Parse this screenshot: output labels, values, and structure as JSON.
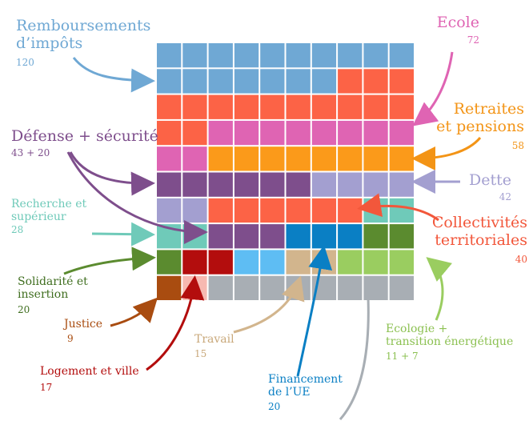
{
  "chart_data": {
    "type": "waffle",
    "grid": {
      "rows": 10,
      "cols": 10
    },
    "categories": [
      {
        "key": "remb",
        "name": "Remboursements d’impôts",
        "value": "120",
        "color": "#6fa8d4"
      },
      {
        "key": "ecole",
        "name": "Ecole",
        "value": "72",
        "color": "#df64b3"
      },
      {
        "key": "retr",
        "name": "Retraites et pensions",
        "value": "58",
        "color": "#fb9a1a"
      },
      {
        "key": "def",
        "name": "Défense + sécurité",
        "value": "43 + 20",
        "color": "#7e4e8c"
      },
      {
        "key": "dette",
        "name": "Dette",
        "value": "42",
        "color": "#a39fd0"
      },
      {
        "key": "rech",
        "name": "Recherche et supérieur",
        "value": "28",
        "color": "#6fcab9"
      },
      {
        "key": "coll",
        "name": "Collectivités territoriales",
        "value": "40",
        "color": "#fc6346"
      },
      {
        "key": "solid",
        "name": "Solidarité et insertion",
        "value": "20",
        "color": "#5b8b2f"
      },
      {
        "key": "justice",
        "name": "Justice",
        "value": "9",
        "color": "#a94c10"
      },
      {
        "key": "travail",
        "name": "Travail",
        "value": "15",
        "color": "#d2b58d"
      },
      {
        "key": "logt",
        "name": "Logement et ville",
        "value": "17",
        "color": "#b30d0d"
      },
      {
        "key": "ue",
        "name": "Financement de l’UE",
        "value": "20",
        "color": "#0a7fc4"
      },
      {
        "key": "eco",
        "name": "Ecologie + transition énergétique",
        "value": "11 + 7",
        "color": "#9acd60"
      }
    ],
    "cells": [
      "remb",
      "remb",
      "remb",
      "remb",
      "remb",
      "remb",
      "remb",
      "remb",
      "remb",
      "remb",
      "remb",
      "remb",
      "remb",
      "remb",
      "remb",
      "remb",
      "remb",
      "coll",
      "coll",
      "coll",
      "coll",
      "coll",
      "coll",
      "coll",
      "coll",
      "coll",
      "coll",
      "coll",
      "coll",
      "coll",
      "coll",
      "coll",
      "ecole",
      "ecole",
      "ecole",
      "ecole",
      "ecole",
      "ecole",
      "ecole",
      "ecole",
      "ecole",
      "ecole",
      "retr",
      "retr",
      "retr",
      "retr",
      "retr",
      "retr",
      "retr",
      "retr",
      "def",
      "def",
      "def",
      "def",
      "def",
      "def",
      "dette",
      "dette",
      "dette",
      "dette",
      "dette",
      "dette",
      "coll",
      "coll",
      "coll",
      "coll",
      "coll",
      "coll",
      "rech",
      "rech",
      "rech",
      "rech",
      "def",
      "def",
      "def",
      "ue",
      "ue",
      "ue",
      "solid",
      "solid",
      "solid",
      "logt",
      "logt",
      "sky",
      "sky",
      "travail",
      "travail",
      "eco",
      "eco",
      "eco",
      "justice",
      "pink",
      "grey",
      "grey",
      "grey",
      "grey",
      "grey",
      "grey",
      "grey",
      "grey"
    ],
    "extra_colors": {
      "sky": "#5ebdf3",
      "pink": "#f7b9b1",
      "grey": "#a8aeb4"
    }
  },
  "labels": {
    "remb_title_1": "Remboursements",
    "remb_title_2": "d’impôts",
    "remb_value": "120",
    "ecole_title": "Ecole",
    "ecole_value": "72",
    "retr_title_1": "Retraites",
    "retr_title_2": "et pensions",
    "retr_value": "58",
    "def_title": "Défense + sécurité",
    "def_value": "43 + 20",
    "dette_title": "Dette",
    "dette_value": "42",
    "rech_title_1": "Recherche et",
    "rech_title_2": "supérieur",
    "rech_value": "28",
    "coll_title_1": "Collectivités",
    "coll_title_2": "territoriales",
    "coll_value": "40",
    "solid_title_1": "Solidarité et",
    "solid_title_2": "insertion",
    "solid_value": "20",
    "justice_title": "Justice",
    "justice_value": "9",
    "travail_title": "Travail",
    "travail_value": "15",
    "logt_title": "Logement et ville",
    "logt_value": "17",
    "ue_title_1": "Financement",
    "ue_title_2": "de l’UE",
    "ue_value": "20",
    "eco_title_1": "Ecologie +",
    "eco_title_2": "transition énergétique",
    "eco_value": "11 + 7"
  }
}
